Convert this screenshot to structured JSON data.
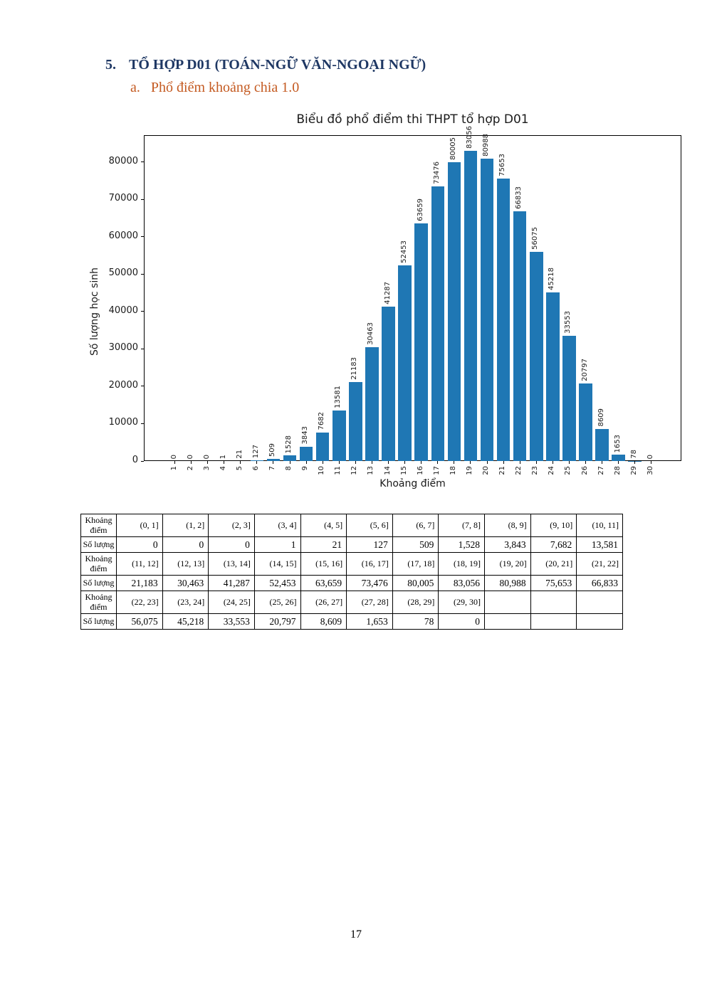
{
  "page": {
    "heading": {
      "number": "5.",
      "text": "TỔ HỢP D01 (TOÁN-NGỮ VĂN-NGOẠI NGỮ)",
      "color": "#1f3864"
    },
    "subheading": {
      "letter": "a.",
      "text": "Phổ điểm khoảng chia 1.0",
      "color": "#c45a21"
    },
    "page_number": "17"
  },
  "chart_data": {
    "type": "bar",
    "title": "Biểu đồ phổ điểm thi THPT tổ hợp D01",
    "xlabel": "Khoảng điểm",
    "ylabel": "Số lượng học sinh",
    "categories": [
      1,
      2,
      3,
      4,
      5,
      6,
      7,
      8,
      9,
      10,
      11,
      12,
      13,
      14,
      15,
      16,
      17,
      18,
      19,
      20,
      21,
      22,
      23,
      24,
      25,
      26,
      27,
      28,
      29,
      30
    ],
    "values": [
      0,
      0,
      0,
      1,
      21,
      127,
      509,
      1528,
      3843,
      7682,
      13581,
      21183,
      30463,
      41287,
      52453,
      63659,
      73476,
      80005,
      83056,
      80988,
      75653,
      66833,
      56075,
      45218,
      33553,
      20797,
      8609,
      1653,
      78,
      0
    ],
    "bar_color": "#1f77b4",
    "ylim": [
      0,
      87209
    ],
    "yticks": [
      0,
      10000,
      20000,
      30000,
      40000,
      50000,
      60000,
      70000,
      80000
    ],
    "grid": false,
    "legend_position": "none",
    "value_label_rotation": 90,
    "xtick_rotation": 90
  },
  "table": {
    "row_label_interval": "Khoảng điểm",
    "row_label_count": "Số lượng",
    "groups": [
      {
        "intervals": [
          "(0, 1]",
          "(1, 2]",
          "(2, 3]",
          "(3, 4]",
          "(4, 5]",
          "(5, 6]",
          "(6, 7]",
          "(7, 8]",
          "(8, 9]",
          "(9, 10]",
          "(10, 11]"
        ],
        "counts": [
          "0",
          "0",
          "0",
          "1",
          "21",
          "127",
          "509",
          "1,528",
          "3,843",
          "7,682",
          "13,581"
        ]
      },
      {
        "intervals": [
          "(11, 12]",
          "(12, 13]",
          "(13, 14]",
          "(14, 15]",
          "(15, 16]",
          "(16, 17]",
          "(17, 18]",
          "(18, 19]",
          "(19, 20]",
          "(20, 21]",
          "(21, 22]"
        ],
        "counts": [
          "21,183",
          "30,463",
          "41,287",
          "52,453",
          "63,659",
          "73,476",
          "80,005",
          "83,056",
          "80,988",
          "75,653",
          "66,833"
        ]
      },
      {
        "intervals": [
          "(22, 23]",
          "(23, 24]",
          "(24, 25]",
          "(25, 26]",
          "(26, 27]",
          "(27, 28]",
          "(28, 29]",
          "(29, 30]",
          "",
          "",
          ""
        ],
        "counts": [
          "56,075",
          "45,218",
          "33,553",
          "20,797",
          "8,609",
          "1,653",
          "78",
          "0",
          "",
          "",
          ""
        ]
      }
    ]
  }
}
